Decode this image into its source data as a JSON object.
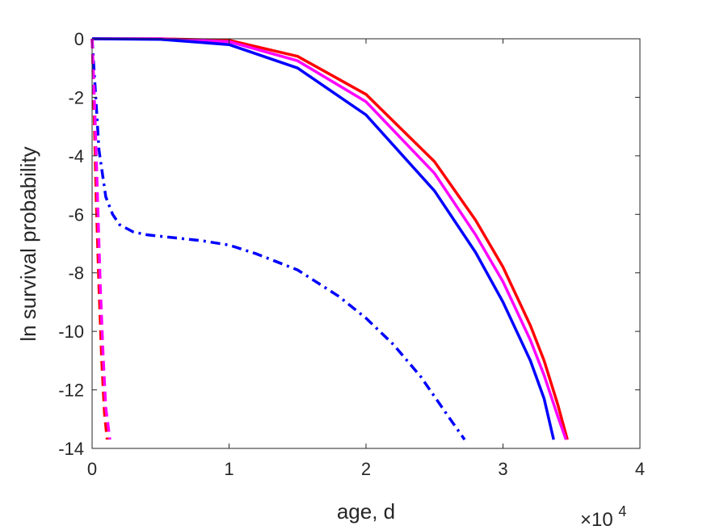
{
  "chart_data": {
    "type": "line",
    "xlabel": "age, d",
    "ylabel": "ln survival probability",
    "x_multiplier_label": "×10",
    "x_multiplier_exp": "4",
    "xlim": [
      0,
      40000
    ],
    "ylim": [
      -14,
      0
    ],
    "xticks": [
      0,
      10000,
      20000,
      30000,
      40000
    ],
    "xtick_labels": [
      "0",
      "1",
      "2",
      "3",
      "4"
    ],
    "yticks": [
      0,
      -2,
      -4,
      -6,
      -8,
      -10,
      -12,
      -14
    ],
    "ytick_labels": [
      "0",
      "-2",
      "-4",
      "-6",
      "-8",
      "-10",
      "-12",
      "-14"
    ],
    "grid": false,
    "series": [
      {
        "color": "#ff0000",
        "style": "solid",
        "x": [
          0,
          5000,
          10000,
          15000,
          20000,
          25000,
          28000,
          30000,
          32000,
          33000,
          34000,
          34700
        ],
        "y": [
          0,
          0,
          -0.05,
          -0.6,
          -1.9,
          -4.2,
          -6.2,
          -7.8,
          -9.8,
          -11.0,
          -12.5,
          -13.7
        ]
      },
      {
        "color": "#ff00ff",
        "style": "solid",
        "x": [
          0,
          5000,
          10000,
          15000,
          20000,
          25000,
          28000,
          30000,
          32000,
          33000,
          34000,
          34600
        ],
        "y": [
          0,
          0,
          -0.1,
          -0.75,
          -2.15,
          -4.6,
          -6.7,
          -8.3,
          -10.3,
          -11.5,
          -12.9,
          -13.7
        ]
      },
      {
        "color": "#0000ff",
        "style": "solid",
        "x": [
          0,
          5000,
          10000,
          15000,
          20000,
          25000,
          28000,
          30000,
          32000,
          33000,
          33700
        ],
        "y": [
          0,
          -0.02,
          -0.2,
          -1.0,
          -2.6,
          -5.2,
          -7.3,
          -9.0,
          -11.0,
          -12.3,
          -13.7
        ]
      },
      {
        "color": "#0000ff",
        "style": "dashdot",
        "x": [
          0,
          200,
          500,
          1000,
          1500,
          2000,
          3000,
          4000,
          6000,
          8000,
          10000,
          12000,
          15000,
          18000,
          20000,
          22000,
          24000,
          26000,
          27200
        ],
        "y": [
          0,
          -1.5,
          -3.8,
          -5.4,
          -6.0,
          -6.35,
          -6.6,
          -6.7,
          -6.8,
          -6.9,
          -7.05,
          -7.35,
          -7.9,
          -8.8,
          -9.55,
          -10.45,
          -11.55,
          -12.9,
          -13.7
        ]
      },
      {
        "color": "#ff0000",
        "style": "dashed",
        "x": [
          0,
          150,
          300,
          500,
          700,
          900,
          1100
        ],
        "y": [
          0,
          -2.5,
          -5.5,
          -8.5,
          -11.0,
          -12.8,
          -13.7
        ]
      },
      {
        "color": "#ff00ff",
        "style": "dashed",
        "x": [
          0,
          200,
          400,
          600,
          800,
          1000,
          1300
        ],
        "y": [
          0,
          -2.5,
          -5.5,
          -8.5,
          -10.8,
          -12.6,
          -13.7
        ]
      }
    ]
  }
}
